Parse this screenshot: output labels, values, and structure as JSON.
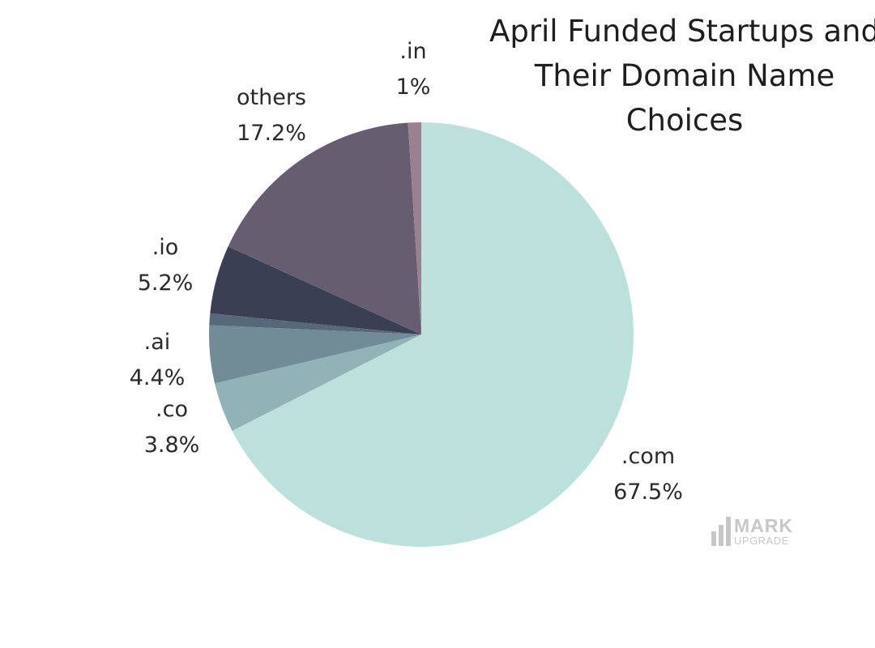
{
  "chart_data": {
    "type": "pie",
    "title_lines": [
      "April Funded Startups and",
      "Their Domain Name",
      "Choices"
    ],
    "slices": [
      {
        "label": ".com",
        "value": 67.5,
        "display": "67.5%",
        "color": "#bce1dc"
      },
      {
        "label": ".co",
        "value": 3.8,
        "display": "3.8%",
        "color": "#91b3b7"
      },
      {
        "label": ".ai",
        "value": 4.4,
        "display": "4.4%",
        "color": "#718c97"
      },
      {
        "label": "",
        "value": 0.9,
        "display": "",
        "color": "#56697a"
      },
      {
        "label": ".io",
        "value": 5.2,
        "display": "5.2%",
        "color": "#3a3f53"
      },
      {
        "label": "others",
        "value": 17.2,
        "display": "17.2%",
        "color": "#665d71"
      },
      {
        "label": ".in",
        "value": 1,
        "display": "1%",
        "color": "#9a818f"
      }
    ]
  },
  "watermark": {
    "top": "MARK",
    "bottom": "UPGRADE"
  }
}
